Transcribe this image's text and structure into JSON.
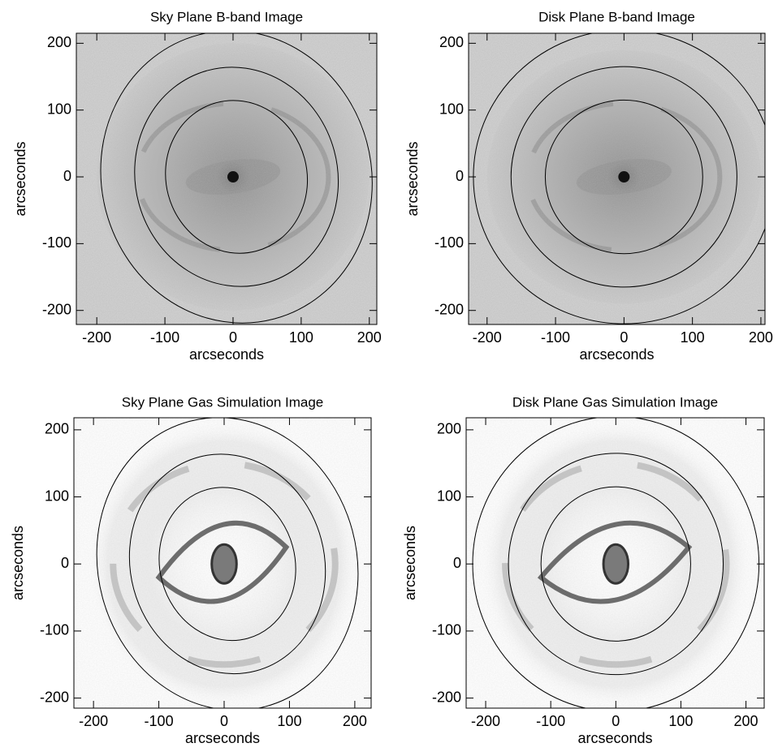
{
  "chart_data": [
    {
      "type": "image",
      "title": "Sky Plane B-band Image",
      "xlabel": "arcseconds",
      "ylabel": "arcseconds",
      "xlim": [
        -230,
        211
      ],
      "ylim": [
        -221,
        215
      ],
      "xticks": [
        -200,
        -100,
        0,
        100,
        200
      ],
      "yticks": [
        -200,
        -100,
        0,
        100,
        200
      ]
    },
    {
      "type": "image",
      "title": "Disk Plane B-band Image",
      "xlabel": "arcseconds",
      "ylabel": "arcseconds",
      "xlim": [
        -227,
        206
      ],
      "ylim": [
        -221,
        215
      ],
      "xticks": [
        -200,
        -100,
        0,
        100,
        200
      ],
      "yticks": [
        -200,
        -100,
        0,
        100,
        200
      ]
    },
    {
      "type": "simulation",
      "title": "Sky Plane Gas Simulation Image",
      "xlabel": "arcseconds",
      "ylabel": "arcseconds",
      "xlim": [
        -230,
        225
      ],
      "ylim": [
        -215,
        218
      ],
      "xticks": [
        -200,
        -100,
        0,
        100,
        200
      ],
      "yticks": [
        -200,
        -100,
        0,
        100,
        200
      ]
    },
    {
      "type": "simulation",
      "title": "Disk Plane Gas Simulation Image",
      "xlabel": "arcseconds",
      "ylabel": "arcseconds",
      "xlim": [
        -230,
        228
      ],
      "ylim": [
        -215,
        218
      ],
      "xticks": [
        -200,
        -100,
        0,
        100,
        200
      ],
      "yticks": [
        -200,
        -100,
        0,
        100,
        200
      ]
    }
  ]
}
